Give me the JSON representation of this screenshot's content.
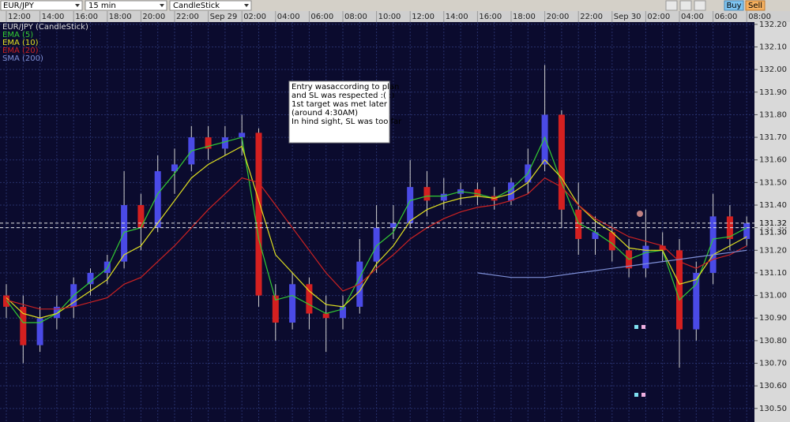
{
  "toolbar": {
    "symbol": "EUR/JPY",
    "interval": "15 min",
    "chart_style": "CandleStick",
    "buy": "Buy",
    "sell": "Sell"
  },
  "chart_data": {
    "type": "candlestick",
    "title": "EUR/JPY (CandleStick)",
    "categories": [
      "12:00",
      null,
      "14:00",
      null,
      "16:00",
      null,
      "18:00",
      null,
      "20:00",
      null,
      "22:00",
      null,
      "Sep 29",
      null,
      "02:00",
      null,
      "04:00",
      null,
      "06:00",
      null,
      "08:00",
      null,
      "10:00",
      null,
      "12:00",
      null,
      "14:00",
      null,
      "16:00",
      null,
      "18:00",
      null,
      "20:00",
      null,
      "22:00",
      null,
      "Sep 30",
      null,
      "02:00",
      null,
      "04:00",
      null,
      "06:00",
      null,
      "08:00"
    ],
    "open": [
      131.0,
      130.95,
      130.78,
      130.9,
      130.95,
      131.05,
      131.1,
      131.15,
      131.4,
      131.3,
      131.55,
      131.58,
      131.7,
      131.65,
      131.7,
      131.72,
      131.0,
      130.88,
      131.05,
      130.92,
      130.9,
      130.95,
      131.15,
      131.3,
      131.32,
      131.48,
      131.42,
      131.45,
      131.47,
      131.44,
      131.42,
      131.5,
      131.58,
      131.8,
      131.38,
      131.25,
      131.28,
      131.2,
      131.12,
      131.22,
      131.2,
      130.85,
      131.1,
      131.35,
      131.25
    ],
    "high": [
      131.05,
      131.0,
      130.95,
      131.0,
      131.08,
      131.12,
      131.18,
      131.55,
      131.45,
      131.62,
      131.65,
      131.75,
      131.75,
      131.75,
      131.8,
      131.74,
      131.05,
      131.1,
      131.08,
      131.0,
      131.0,
      131.25,
      131.4,
      131.4,
      131.6,
      131.55,
      131.52,
      131.5,
      131.5,
      131.48,
      131.52,
      131.65,
      132.02,
      131.82,
      131.5,
      131.35,
      131.32,
      131.25,
      131.38,
      131.28,
      131.25,
      131.15,
      131.45,
      131.4,
      131.35
    ],
    "low": [
      130.9,
      130.7,
      130.75,
      130.85,
      130.9,
      131.0,
      131.05,
      131.12,
      131.2,
      131.28,
      131.45,
      131.55,
      131.6,
      131.62,
      131.62,
      130.95,
      130.8,
      130.85,
      130.85,
      130.75,
      130.85,
      130.92,
      131.1,
      131.25,
      131.3,
      131.35,
      131.38,
      131.4,
      131.4,
      131.38,
      131.4,
      131.45,
      131.55,
      131.3,
      131.18,
      131.18,
      131.15,
      131.08,
      131.08,
      131.15,
      130.68,
      130.8,
      131.05,
      131.2,
      131.22
    ],
    "close": [
      130.95,
      130.78,
      130.9,
      130.95,
      131.05,
      131.1,
      131.15,
      131.4,
      131.3,
      131.55,
      131.58,
      131.7,
      131.65,
      131.7,
      131.72,
      131.0,
      130.88,
      131.05,
      130.92,
      130.9,
      130.95,
      131.15,
      131.3,
      131.32,
      131.48,
      131.42,
      131.45,
      131.47,
      131.44,
      131.42,
      131.5,
      131.58,
      131.8,
      131.38,
      131.25,
      131.28,
      131.2,
      131.12,
      131.22,
      131.2,
      130.85,
      131.1,
      131.35,
      131.25,
      131.32
    ],
    "up_color": "#4a4ae6",
    "down_color": "#d42020",
    "series": [
      {
        "name": "EMA (5)",
        "color": "#33cc33",
        "values": [
          130.98,
          130.88,
          130.88,
          130.92,
          131.0,
          131.06,
          131.12,
          131.28,
          131.3,
          131.45,
          131.54,
          131.64,
          131.66,
          131.68,
          131.7,
          131.25,
          130.98,
          131.0,
          130.96,
          130.92,
          130.94,
          131.08,
          131.22,
          131.28,
          131.42,
          131.44,
          131.44,
          131.46,
          131.45,
          131.43,
          131.47,
          131.54,
          131.7,
          131.5,
          131.32,
          131.28,
          131.23,
          131.16,
          131.19,
          131.2,
          130.98,
          131.05,
          131.25,
          131.26,
          131.3
        ]
      },
      {
        "name": "EMA (10)",
        "color": "#e0e020",
        "values": [
          130.99,
          130.92,
          130.9,
          130.92,
          130.97,
          131.02,
          131.07,
          131.18,
          131.22,
          131.32,
          131.42,
          131.52,
          131.58,
          131.62,
          131.66,
          131.42,
          131.18,
          131.1,
          131.02,
          130.96,
          130.95,
          131.02,
          131.14,
          131.22,
          131.33,
          131.38,
          131.41,
          131.43,
          131.44,
          131.43,
          131.45,
          131.5,
          131.6,
          131.52,
          131.4,
          131.33,
          131.28,
          131.21,
          131.2,
          131.2,
          131.05,
          131.07,
          131.18,
          131.22,
          131.26
        ]
      },
      {
        "name": "EMA (20)",
        "color": "#cc2222",
        "values": [
          130.98,
          130.96,
          130.94,
          130.94,
          130.95,
          130.97,
          130.99,
          131.05,
          131.08,
          131.15,
          131.22,
          131.3,
          131.38,
          131.45,
          131.52,
          131.5,
          131.4,
          131.3,
          131.2,
          131.1,
          131.02,
          131.05,
          131.12,
          131.18,
          131.25,
          131.3,
          131.34,
          131.37,
          131.39,
          131.4,
          131.42,
          131.45,
          131.52,
          131.48,
          131.4,
          131.34,
          131.3,
          131.26,
          131.24,
          131.22,
          131.15,
          131.12,
          131.16,
          131.18,
          131.22
        ]
      },
      {
        "name": "SMA (200)",
        "color": "#7f90d8",
        "values": [
          null,
          null,
          null,
          null,
          null,
          null,
          null,
          null,
          null,
          null,
          null,
          null,
          null,
          null,
          null,
          null,
          null,
          null,
          null,
          null,
          null,
          null,
          null,
          null,
          null,
          null,
          null,
          null,
          131.1,
          131.09,
          131.08,
          131.08,
          131.08,
          131.09,
          131.1,
          131.11,
          131.12,
          131.13,
          131.14,
          131.15,
          131.16,
          131.17,
          131.18,
          131.19,
          131.2
        ]
      }
    ],
    "ylim": [
      130.44,
      132.21
    ],
    "yticks": [
      {
        "value": 130.5,
        "label": "130.50"
      },
      {
        "value": 130.6,
        "label": "130.60"
      },
      {
        "value": 130.7,
        "label": "130.70"
      },
      {
        "value": 130.8,
        "label": "130.80"
      },
      {
        "value": 130.9,
        "label": "130.90"
      },
      {
        "value": 131.0,
        "label": "131.00"
      },
      {
        "value": 131.1,
        "label": "131.10"
      },
      {
        "value": 131.2,
        "label": "131.20"
      },
      {
        "value": 131.3,
        "label": "131.30"
      },
      {
        "value": 131.4,
        "label": "131.40"
      },
      {
        "value": 131.5,
        "label": "131.50"
      },
      {
        "value": 131.6,
        "label": "131.60"
      },
      {
        "value": 131.7,
        "label": "131.70"
      },
      {
        "value": 131.8,
        "label": "131.80"
      },
      {
        "value": 131.9,
        "label": "131.90"
      },
      {
        "value": 132.0,
        "label": "132.00"
      },
      {
        "value": 132.1,
        "label": "132.10"
      },
      {
        "value": 132.2,
        "label": "132.20"
      }
    ],
    "price_lines": [
      {
        "value": 131.32,
        "label": "131.32"
      },
      {
        "value": 131.3,
        "label": "131.30"
      }
    ],
    "grid": true,
    "annotation": [
      "Entry wasaccording to plan",
      "and SL was respected :( :)",
      "1st target was met later",
      "(around 4:30AM)",
      "In hind sight, SL was too far"
    ]
  }
}
